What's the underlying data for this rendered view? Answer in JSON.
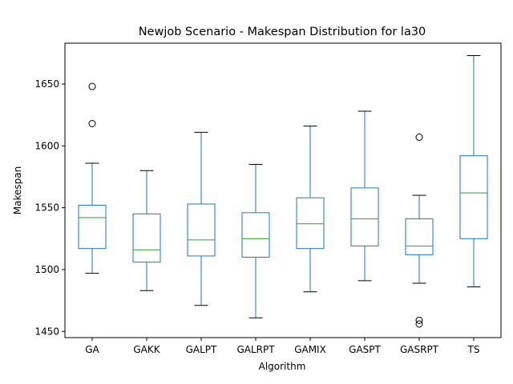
{
  "chart_data": {
    "type": "box",
    "title": "Newjob Scenario - Makespan Distribution for la30",
    "xlabel": "Algorithm",
    "ylabel": "Makespan",
    "ylim": [
      1445,
      1683
    ],
    "yticks": [
      1450,
      1500,
      1550,
      1600,
      1650
    ],
    "grid": false,
    "colors": {
      "box": "#1f77b4",
      "median": "#2ca02c",
      "axis": "#000000"
    },
    "categories": [
      "GA",
      "GAKK",
      "GALPT",
      "GALRPT",
      "GAMIX",
      "GASPT",
      "GASRPT",
      "TS"
    ],
    "boxes": [
      {
        "whisker_low": 1497,
        "q1": 1517,
        "median": 1542,
        "q3": 1552,
        "whisker_high": 1586,
        "outliers": [
          1618,
          1648
        ]
      },
      {
        "whisker_low": 1483,
        "q1": 1506,
        "median": 1516,
        "q3": 1545,
        "whisker_high": 1580,
        "outliers": []
      },
      {
        "whisker_low": 1471,
        "q1": 1511,
        "median": 1524,
        "q3": 1553,
        "whisker_high": 1611,
        "outliers": []
      },
      {
        "whisker_low": 1461,
        "q1": 1510,
        "median": 1525,
        "q3": 1546,
        "whisker_high": 1585,
        "outliers": []
      },
      {
        "whisker_low": 1482,
        "q1": 1517,
        "median": 1537,
        "q3": 1558,
        "whisker_high": 1616,
        "outliers": []
      },
      {
        "whisker_low": 1491,
        "q1": 1519,
        "median": 1541,
        "q3": 1566,
        "whisker_high": 1628,
        "outliers": []
      },
      {
        "whisker_low": 1489,
        "q1": 1512,
        "median": 1519,
        "q3": 1541,
        "whisker_high": 1560,
        "outliers": [
          1456,
          1459,
          1607
        ]
      },
      {
        "whisker_low": 1486,
        "q1": 1525,
        "median": 1562,
        "q3": 1592,
        "whisker_high": 1673,
        "outliers": []
      }
    ]
  }
}
